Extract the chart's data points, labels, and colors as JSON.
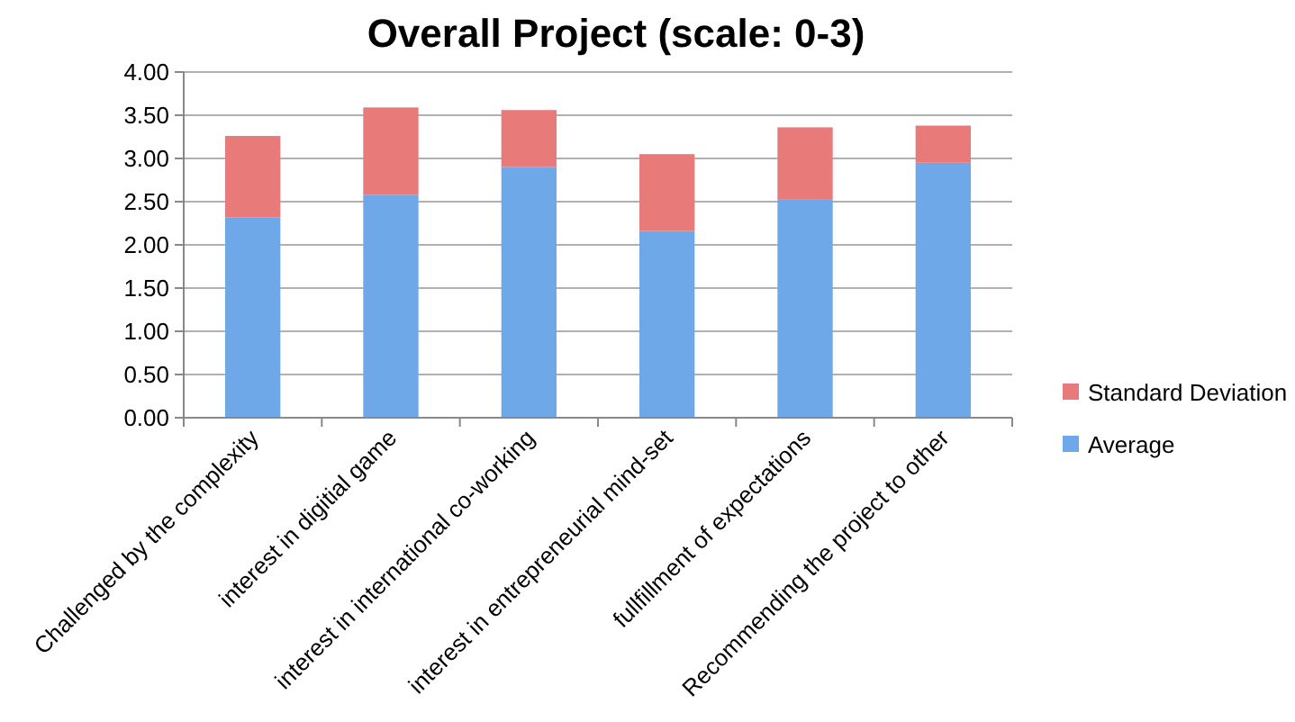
{
  "chart_data": {
    "type": "bar",
    "title": "Overall Project (scale: 0-3)",
    "stacked": true,
    "categories": [
      "Challenged by the complexity",
      "interest in digitial game",
      "interest in international co-working",
      "interest in entrepreneurial mind-set",
      "fullfillment of expectations",
      "Recommending the project to other"
    ],
    "series": [
      {
        "name": "Average",
        "color": "#6fa8e8",
        "values": [
          2.32,
          2.58,
          2.9,
          2.16,
          2.53,
          2.95
        ]
      },
      {
        "name": "Standard Deviation",
        "color": "#e87a7a",
        "values": [
          0.94,
          1.01,
          0.66,
          0.89,
          0.83,
          0.43
        ]
      }
    ],
    "ylim": [
      0,
      4
    ],
    "yticks": [
      {
        "value": 0,
        "label": "0.00"
      },
      {
        "value": 0.5,
        "label": "0.50"
      },
      {
        "value": 1,
        "label": "1.00"
      },
      {
        "value": 1.5,
        "label": "1.50"
      },
      {
        "value": 2,
        "label": "2.00"
      },
      {
        "value": 2.5,
        "label": "2.50"
      },
      {
        "value": 3,
        "label": "3.00"
      },
      {
        "value": 3.5,
        "label": "3.50"
      },
      {
        "value": 4,
        "label": "4.00"
      }
    ],
    "grid": "y",
    "legend": "right"
  }
}
